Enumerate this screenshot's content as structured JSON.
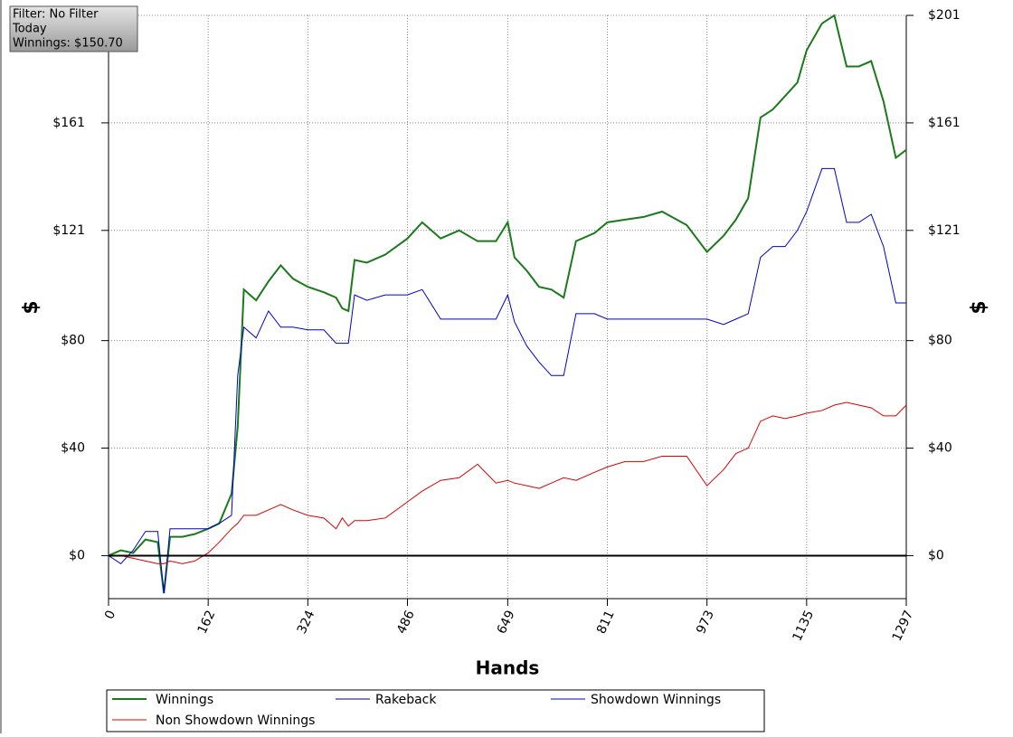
{
  "chart_data": {
    "type": "line",
    "info_box": [
      "Filter: No Filter",
      "Today",
      "Winnings: $150.70"
    ],
    "x_label": "Hands",
    "y_label": "$",
    "xlim": [
      0,
      1297
    ],
    "xticks": [
      0,
      162,
      324,
      486,
      649,
      811,
      973,
      1135,
      1297
    ],
    "ylim": [
      -16,
      201
    ],
    "yticks": [
      {
        "value": 0,
        "label": "$0"
      },
      {
        "value": 40,
        "label": "$40"
      },
      {
        "value": 80,
        "label": "$80"
      },
      {
        "value": 121,
        "label": "$121"
      },
      {
        "value": 161,
        "label": "$161"
      },
      {
        "value": 201,
        "label": "$201"
      }
    ],
    "grid": true,
    "x": [
      0,
      20,
      40,
      60,
      80,
      90,
      100,
      120,
      140,
      162,
      180,
      200,
      210,
      220,
      240,
      260,
      280,
      300,
      324,
      350,
      370,
      380,
      390,
      400,
      420,
      450,
      486,
      510,
      540,
      570,
      600,
      630,
      649,
      660,
      680,
      700,
      720,
      740,
      760,
      790,
      811,
      840,
      870,
      900,
      940,
      973,
      1000,
      1020,
      1040,
      1060,
      1080,
      1100,
      1120,
      1135,
      1160,
      1180,
      1200,
      1220,
      1240,
      1260,
      1280,
      1297
    ],
    "series": [
      {
        "name": "Winnings",
        "color": "#1a7a1a",
        "width": 2,
        "values": [
          0,
          2,
          1,
          6,
          5,
          -14,
          7,
          7,
          8,
          10,
          12,
          23,
          48,
          99,
          95,
          102,
          108,
          103,
          100,
          98,
          96,
          92,
          91,
          110,
          109,
          112,
          118,
          124,
          118,
          121,
          117,
          117,
          124,
          111,
          106,
          100,
          99,
          96,
          117,
          120,
          124,
          125,
          126,
          128,
          123,
          113,
          119,
          125,
          133,
          163,
          166,
          171,
          176,
          188,
          198,
          201,
          182,
          182,
          184,
          169,
          148,
          151
        ]
      },
      {
        "name": "Rakeback",
        "color": "#000080",
        "width": 1,
        "values": [
          0,
          0,
          0,
          0,
          0,
          0,
          0,
          0,
          0,
          0,
          0,
          0,
          0,
          0,
          0,
          0,
          0,
          0,
          0,
          0,
          0,
          0,
          0,
          0,
          0,
          0,
          0,
          0,
          0,
          0,
          0,
          0,
          0,
          0,
          0,
          0,
          0,
          0,
          0,
          0,
          0,
          0,
          0,
          0,
          0,
          0,
          0,
          0,
          0,
          0,
          0,
          0,
          0,
          0,
          0,
          0,
          0,
          0,
          0,
          0,
          0,
          0
        ]
      },
      {
        "name": "Showdown Winnings",
        "color": "#0000cc",
        "width": 1,
        "values": [
          0,
          -3,
          2,
          9,
          9,
          -14,
          10,
          10,
          10,
          10,
          12,
          15,
          67,
          85,
          81,
          91,
          85,
          85,
          84,
          84,
          79,
          79,
          79,
          97,
          95,
          97,
          97,
          99,
          88,
          88,
          88,
          88,
          97,
          87,
          78,
          72,
          67,
          67,
          90,
          90,
          88,
          88,
          88,
          88,
          88,
          88,
          86,
          88,
          90,
          111,
          115,
          115,
          121,
          128,
          144,
          144,
          124,
          124,
          127,
          115,
          94,
          94
        ]
      },
      {
        "name": "Non Showdown Winnings",
        "color": "#dd0000",
        "width": 1,
        "values": [
          0,
          0,
          -1,
          -2,
          -3,
          -3,
          -2,
          -3,
          -2,
          1,
          5,
          10,
          12,
          15,
          15,
          17,
          19,
          17,
          15,
          14,
          10,
          14,
          11,
          13,
          13,
          14,
          20,
          24,
          28,
          29,
          34,
          27,
          28,
          27,
          26,
          25,
          27,
          29,
          28,
          31,
          33,
          35,
          35,
          37,
          37,
          26,
          32,
          38,
          40,
          50,
          52,
          51,
          52,
          53,
          54,
          56,
          57,
          56,
          55,
          52,
          52,
          56
        ]
      }
    ]
  }
}
